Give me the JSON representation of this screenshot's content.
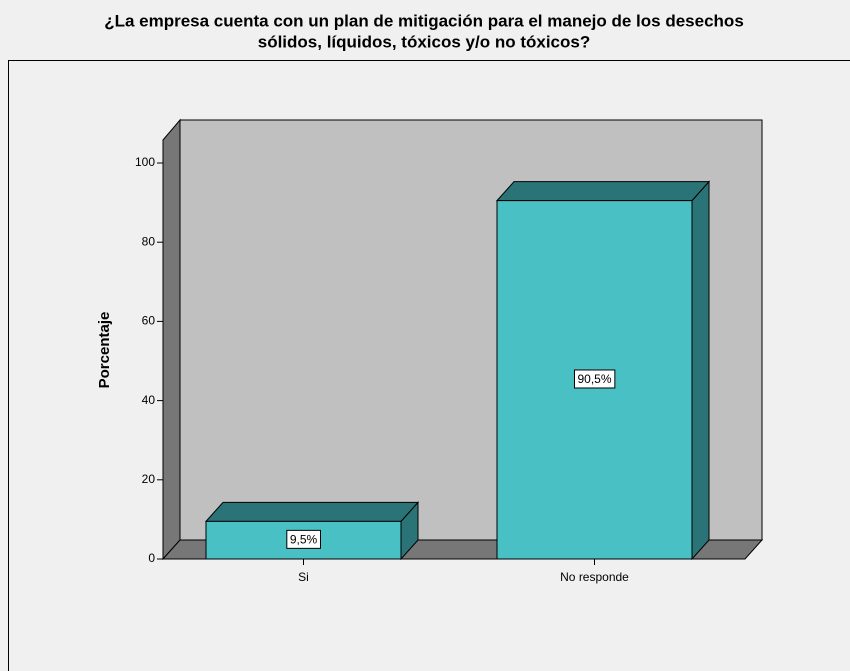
{
  "chart_data": {
    "type": "bar3d",
    "title": [
      "¿La empresa cuenta con un plan de mitigación para el manejo de los desechos",
      "sólidos, líquidos, tóxicos y/o no tóxicos?"
    ],
    "ylabel": "Porcentaje",
    "categories": [
      "Si",
      "No responde"
    ],
    "values": [
      9.5,
      90.5
    ],
    "value_labels": [
      "9,5%",
      "90,5%"
    ],
    "color": "#48c0c4",
    "ylim": [
      0,
      100
    ],
    "yticks": [
      0,
      20,
      40,
      60,
      80,
      100
    ]
  }
}
